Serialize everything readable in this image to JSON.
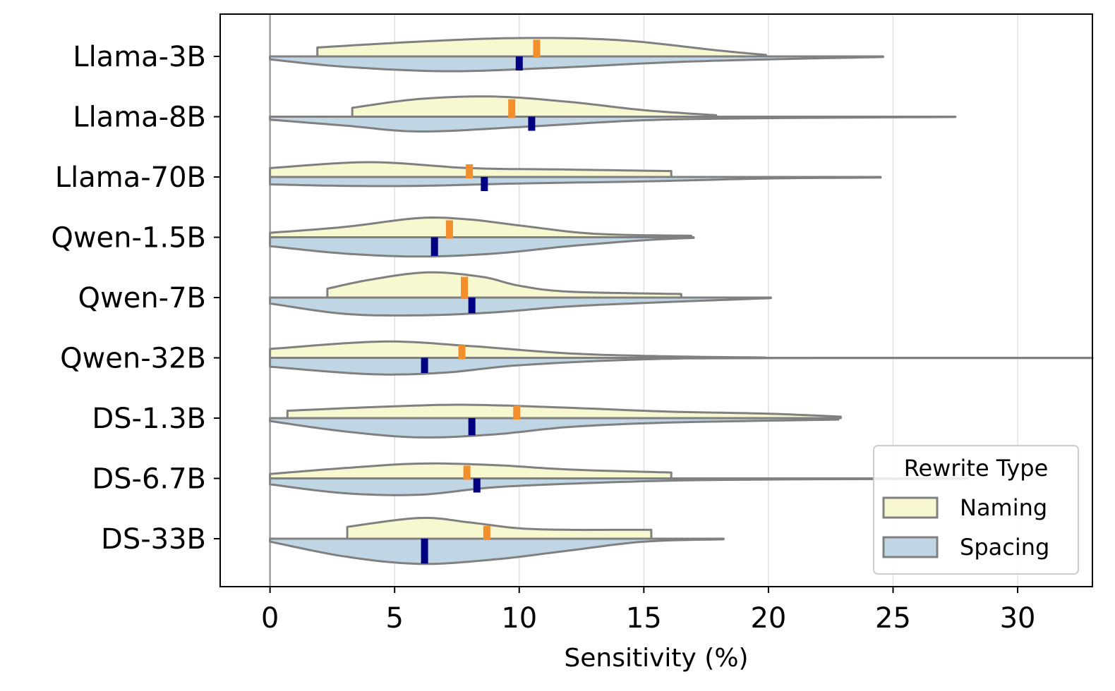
{
  "chart_data": {
    "type": "violin",
    "xlabel": "Sensitivity (%)",
    "ylabel": "",
    "xlim": [
      -2,
      33
    ],
    "xticks": [
      0,
      5,
      10,
      15,
      20,
      25,
      30
    ],
    "xtick_labels": [
      "0",
      "5",
      "10",
      "15",
      "20",
      "25",
      "30"
    ],
    "grid": "vertical",
    "categories": [
      "Llama-3B",
      "Llama-8B",
      "Llama-70B",
      "Qwen-1.5B",
      "Qwen-7B",
      "Qwen-32B",
      "DS-1.3B",
      "DS-6.7B",
      "DS-33B"
    ],
    "colors": {
      "naming_fill": "#f7f7d0",
      "spacing_fill": "#c0d6e4",
      "outline": "#808080",
      "naming_median": "#f28e2b",
      "spacing_median": "#000080",
      "grid": "#e0e0e0",
      "zero_line": "#a0a0a0"
    },
    "legend": {
      "title": "Rewrite Type",
      "position": "lower-right",
      "entries": [
        "Naming",
        "Spacing"
      ]
    },
    "series": [
      {
        "name": "Naming",
        "side": "upper",
        "violins": [
          {
            "min": 1.9,
            "max": 19.9,
            "median": 10.7,
            "profile": [
              [
                1.9,
                0.3
              ],
              [
                6,
                0.5
              ],
              [
                10,
                0.62
              ],
              [
                14,
                0.55
              ],
              [
                18,
                0.2
              ],
              [
                19.9,
                0.05
              ]
            ]
          },
          {
            "min": 3.3,
            "max": 17.9,
            "median": 9.7,
            "profile": [
              [
                3.3,
                0.3
              ],
              [
                6,
                0.6
              ],
              [
                9,
                0.68
              ],
              [
                12,
                0.5
              ],
              [
                15,
                0.22
              ],
              [
                17.9,
                0.05
              ]
            ]
          },
          {
            "min": 0.0,
            "max": 16.1,
            "median": 8.0,
            "profile": [
              [
                0,
                0.3
              ],
              [
                4,
                0.5
              ],
              [
                8,
                0.3
              ],
              [
                12,
                0.25
              ],
              [
                16.1,
                0.2
              ]
            ]
          },
          {
            "min": 0.0,
            "max": 16.9,
            "median": 7.2,
            "profile": [
              [
                0,
                0.15
              ],
              [
                3,
                0.35
              ],
              [
                6,
                0.65
              ],
              [
                8,
                0.6
              ],
              [
                10,
                0.4
              ],
              [
                13,
                0.12
              ],
              [
                16.9,
                0.05
              ]
            ]
          },
          {
            "min": 2.3,
            "max": 16.5,
            "median": 7.8,
            "profile": [
              [
                2.3,
                0.3
              ],
              [
                4,
                0.6
              ],
              [
                6.3,
                0.85
              ],
              [
                8.5,
                0.7
              ],
              [
                10,
                0.4
              ],
              [
                12,
                0.2
              ],
              [
                16.5,
                0.12
              ]
            ]
          },
          {
            "min": 0.0,
            "max": 19.9,
            "median": 7.7,
            "profile": [
              [
                0,
                0.3
              ],
              [
                4.5,
                0.55
              ],
              [
                8,
                0.4
              ],
              [
                12,
                0.15
              ],
              [
                16,
                0.05
              ],
              [
                19.9,
                0.01
              ]
            ]
          },
          {
            "min": 0.7,
            "max": 22.9,
            "median": 9.9,
            "profile": [
              [
                0.7,
                0.25
              ],
              [
                5,
                0.4
              ],
              [
                8,
                0.45
              ],
              [
                12,
                0.35
              ],
              [
                16,
                0.22
              ],
              [
                20,
                0.15
              ],
              [
                22.9,
                0.05
              ]
            ]
          },
          {
            "min": 0.0,
            "max": 16.1,
            "median": 7.9,
            "profile": [
              [
                0,
                0.15
              ],
              [
                3,
                0.35
              ],
              [
                6,
                0.5
              ],
              [
                9,
                0.45
              ],
              [
                12,
                0.3
              ],
              [
                16.1,
                0.2
              ]
            ]
          },
          {
            "min": 3.1,
            "max": 15.3,
            "median": 8.7,
            "profile": [
              [
                3.1,
                0.4
              ],
              [
                6,
                0.7
              ],
              [
                8,
                0.55
              ],
              [
                10,
                0.35
              ],
              [
                12,
                0.3
              ],
              [
                14,
                0.3
              ],
              [
                15.3,
                0.3
              ]
            ]
          }
        ]
      },
      {
        "name": "Spacing",
        "side": "lower",
        "violins": [
          {
            "min": 0.0,
            "max": 24.6,
            "median": 10.0,
            "profile": [
              [
                0,
                0.1
              ],
              [
                3,
                0.35
              ],
              [
                7,
                0.5
              ],
              [
                11,
                0.4
              ],
              [
                16,
                0.2
              ],
              [
                20,
                0.1
              ],
              [
                24.6,
                0.02
              ]
            ]
          },
          {
            "min": 0.0,
            "max": 27.5,
            "median": 10.5,
            "profile": [
              [
                0,
                0.1
              ],
              [
                3,
                0.3
              ],
              [
                6,
                0.5
              ],
              [
                10,
                0.35
              ],
              [
                15,
                0.12
              ],
              [
                20,
                0.05
              ],
              [
                27.5,
                0.01
              ]
            ]
          },
          {
            "min": 0.0,
            "max": 24.5,
            "median": 8.6,
            "profile": [
              [
                0,
                0.25
              ],
              [
                3,
                0.3
              ],
              [
                6,
                0.3
              ],
              [
                10,
                0.22
              ],
              [
                15,
                0.15
              ],
              [
                20,
                0.05
              ],
              [
                24.5,
                0.02
              ]
            ]
          },
          {
            "min": 0.0,
            "max": 17.0,
            "median": 6.6,
            "profile": [
              [
                0,
                0.3
              ],
              [
                3,
                0.55
              ],
              [
                6,
                0.65
              ],
              [
                9,
                0.55
              ],
              [
                12,
                0.3
              ],
              [
                15,
                0.1
              ],
              [
                17,
                0.02
              ]
            ]
          },
          {
            "min": 0.0,
            "max": 20.1,
            "median": 8.1,
            "profile": [
              [
                0,
                0.2
              ],
              [
                3,
                0.55
              ],
              [
                6,
                0.6
              ],
              [
                9,
                0.5
              ],
              [
                12,
                0.3
              ],
              [
                16,
                0.15
              ],
              [
                20.1,
                0.02
              ]
            ]
          },
          {
            "min": 0.0,
            "max": 33.0,
            "median": 6.2,
            "profile": [
              [
                0,
                0.3
              ],
              [
                4,
                0.55
              ],
              [
                7,
                0.5
              ],
              [
                10,
                0.25
              ],
              [
                15,
                0.05
              ],
              [
                20,
                0.01
              ],
              [
                33,
                0.005
              ]
            ]
          },
          {
            "min": 0.0,
            "max": 22.8,
            "median": 8.1,
            "profile": [
              [
                0,
                0.1
              ],
              [
                3,
                0.45
              ],
              [
                6,
                0.65
              ],
              [
                9,
                0.55
              ],
              [
                12,
                0.3
              ],
              [
                16,
                0.15
              ],
              [
                22.8,
                0.05
              ]
            ]
          },
          {
            "min": 0.0,
            "max": 28.0,
            "median": 8.3,
            "profile": [
              [
                0,
                0.2
              ],
              [
                3,
                0.5
              ],
              [
                6,
                0.55
              ],
              [
                9,
                0.3
              ],
              [
                13,
                0.15
              ],
              [
                18,
                0.05
              ],
              [
                28,
                0.01
              ]
            ]
          },
          {
            "min": 0.0,
            "max": 18.2,
            "median": 6.2,
            "profile": [
              [
                0,
                0.1
              ],
              [
                3,
                0.6
              ],
              [
                6,
                0.85
              ],
              [
                9,
                0.7
              ],
              [
                12,
                0.4
              ],
              [
                15,
                0.1
              ],
              [
                18.2,
                0.02
              ]
            ]
          }
        ]
      }
    ]
  }
}
